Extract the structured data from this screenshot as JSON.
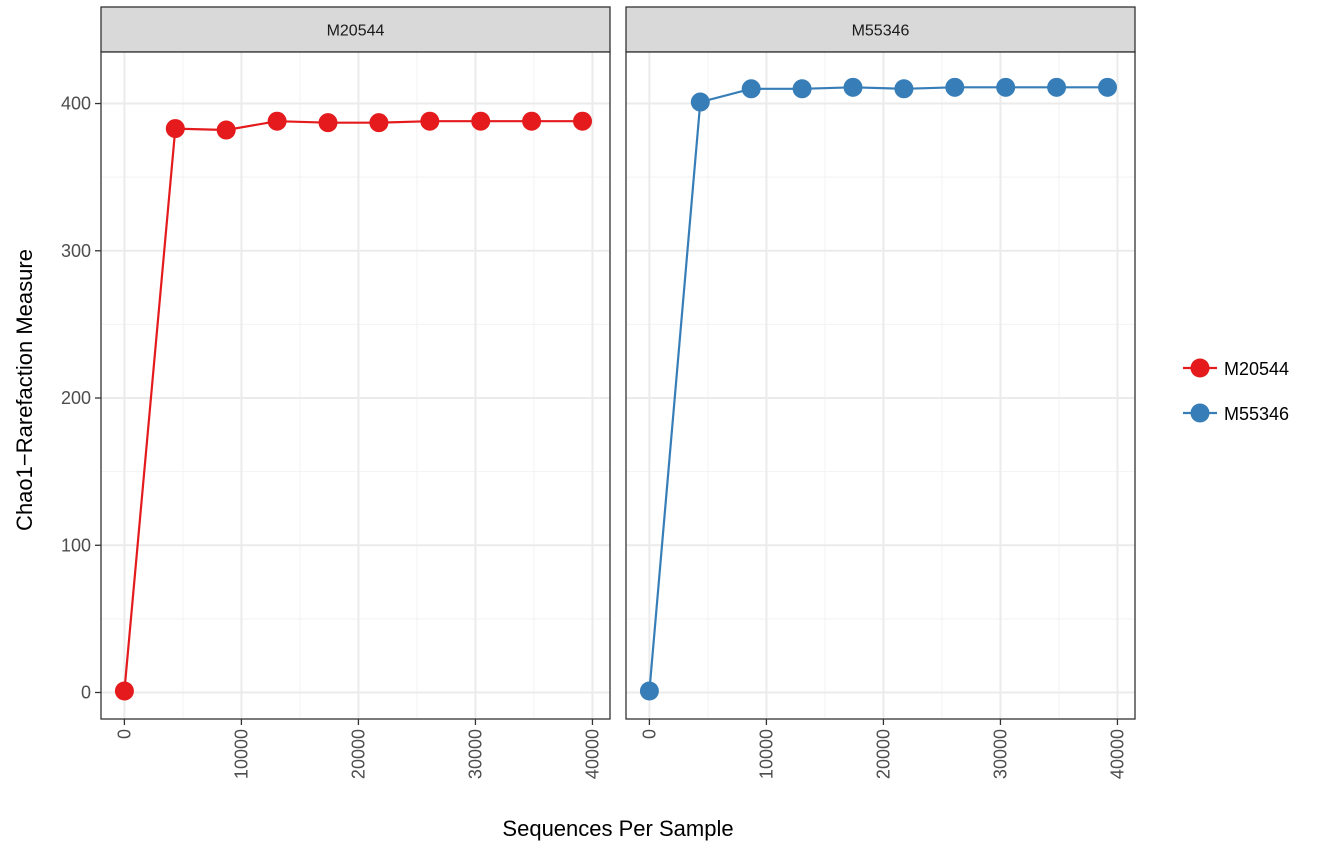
{
  "chart_data": {
    "type": "line",
    "xlabel": "Sequences Per Sample",
    "ylabel": "Chao1−Rarefaction Measure",
    "xlim": [
      -2000,
      41500
    ],
    "ylim": [
      -18,
      435
    ],
    "x_ticks": [
      0,
      10000,
      20000,
      30000,
      40000
    ],
    "x_tick_labels": [
      "0",
      "10000",
      "20000",
      "30000",
      "40000"
    ],
    "y_ticks": [
      0,
      100,
      200,
      300,
      400
    ],
    "y_tick_labels": [
      "0",
      "100",
      "200",
      "300",
      "400"
    ],
    "grid": true,
    "legend_position": "right",
    "panels": [
      {
        "strip_label": "M20544",
        "series": "M20544",
        "x": [
          1,
          4350,
          8700,
          13050,
          17400,
          21750,
          26100,
          30450,
          34800,
          39150
        ],
        "y": [
          1,
          383,
          382,
          388,
          387,
          387,
          388,
          388,
          388,
          388
        ]
      },
      {
        "strip_label": "M55346",
        "series": "M55346",
        "x": [
          1,
          4350,
          8700,
          13050,
          17400,
          21750,
          26100,
          30450,
          34800,
          39150
        ],
        "y": [
          1,
          401,
          410,
          410,
          411,
          410,
          411,
          411,
          411,
          411
        ]
      }
    ],
    "legend": [
      {
        "name": "M20544",
        "color": "#e41a1c"
      },
      {
        "name": "M55346",
        "color": "#377eb8"
      }
    ]
  }
}
